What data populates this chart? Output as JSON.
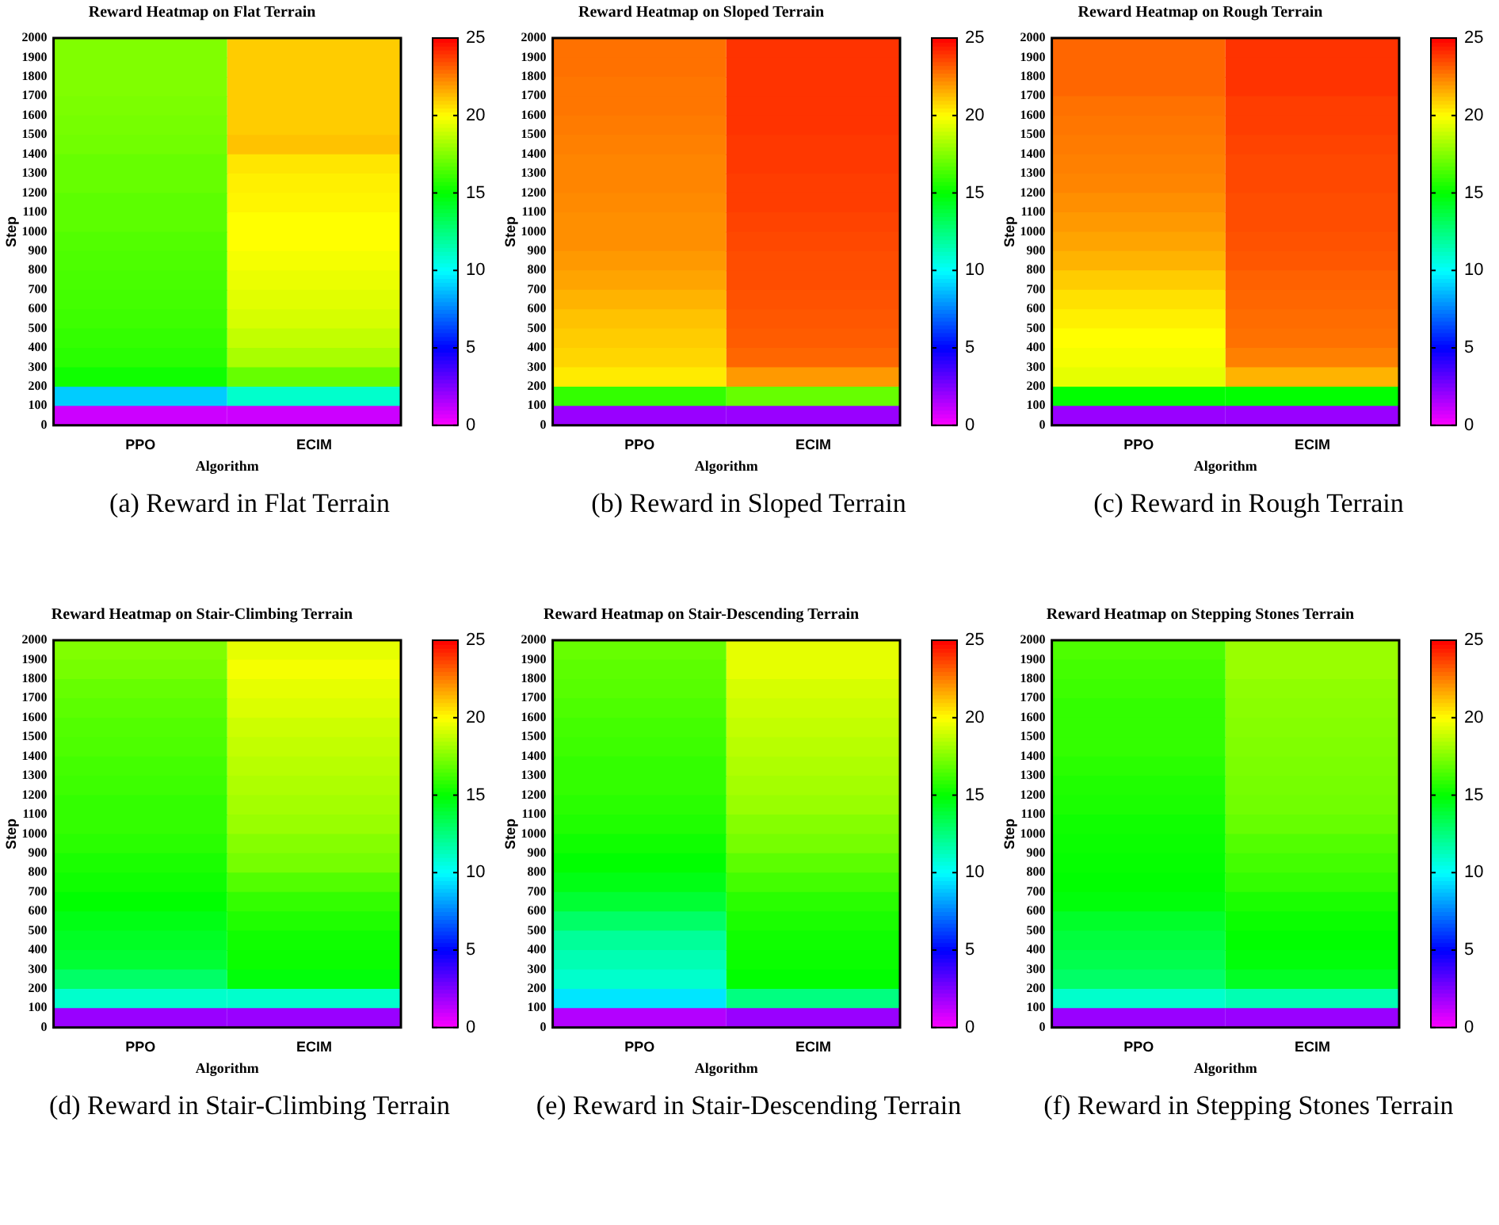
{
  "chart_data": [
    {
      "type": "heatmap",
      "title": "Reward Heatmap on Flat Terrain",
      "xlabel": "Algorithm",
      "ylabel": "Step",
      "categories": [
        "PPO",
        "ECIM"
      ],
      "ylim": [
        0,
        2000
      ],
      "yticks": [
        0,
        100,
        200,
        300,
        400,
        500,
        600,
        700,
        800,
        900,
        1000,
        1100,
        1200,
        1300,
        1400,
        1500,
        1600,
        1700,
        1800,
        1900,
        2000
      ],
      "clim": [
        0,
        25
      ],
      "cticks": [
        0,
        5,
        10,
        15,
        20,
        25
      ],
      "annotations": [
        "(a) Reward in Flat Terrain"
      ],
      "cells": [
        [
          17.5,
          21
        ],
        [
          17.5,
          21
        ],
        [
          17.5,
          21
        ],
        [
          17.4,
          21
        ],
        [
          17.3,
          21
        ],
        [
          17.2,
          21.2
        ],
        [
          17,
          20.5
        ],
        [
          17,
          20.3
        ],
        [
          16.8,
          20.2
        ],
        [
          16.8,
          20
        ],
        [
          16.6,
          20
        ],
        [
          16.5,
          19.8
        ],
        [
          16.4,
          19.6
        ],
        [
          16.3,
          19.4
        ],
        [
          16.2,
          19.2
        ],
        [
          16,
          18.8
        ],
        [
          15.8,
          18.3
        ],
        [
          15.3,
          17
        ],
        [
          9,
          11
        ],
        [
          1,
          1
        ]
      ]
    },
    {
      "type": "heatmap",
      "title": "Reward Heatmap on Sloped Terrain",
      "xlabel": "Algorithm",
      "ylabel": "Step",
      "categories": [
        "PPO",
        "ECIM"
      ],
      "ylim": [
        0,
        2000
      ],
      "yticks": [
        0,
        100,
        200,
        300,
        400,
        500,
        600,
        700,
        800,
        900,
        1000,
        1100,
        1200,
        1300,
        1400,
        1500,
        1600,
        1700,
        1800,
        1900,
        2000
      ],
      "clim": [
        0,
        25
      ],
      "cticks": [
        0,
        5,
        10,
        15,
        20,
        25
      ],
      "annotations": [
        "(b) Reward in Sloped Terrain"
      ],
      "cells": [
        [
          22.8,
          24
        ],
        [
          22.8,
          24
        ],
        [
          22.7,
          24
        ],
        [
          22.7,
          24
        ],
        [
          22.6,
          24
        ],
        [
          22.5,
          23.9
        ],
        [
          22.4,
          23.9
        ],
        [
          22.4,
          23.8
        ],
        [
          22.3,
          23.8
        ],
        [
          22.2,
          23.7
        ],
        [
          22.2,
          23.6
        ],
        [
          22,
          23.5
        ],
        [
          21.8,
          23.5
        ],
        [
          21.5,
          23.4
        ],
        [
          21.2,
          23.3
        ],
        [
          21,
          23.2
        ],
        [
          20.8,
          23
        ],
        [
          20.4,
          22
        ],
        [
          16,
          17
        ],
        [
          2,
          2
        ]
      ]
    },
    {
      "type": "heatmap",
      "title": "Reward Heatmap on Rough Terrain",
      "xlabel": "Algorithm",
      "ylabel": "Step",
      "categories": [
        "PPO",
        "ECIM"
      ],
      "ylim": [
        0,
        2000
      ],
      "yticks": [
        0,
        100,
        200,
        300,
        400,
        500,
        600,
        700,
        800,
        900,
        1000,
        1100,
        1200,
        1300,
        1400,
        1500,
        1600,
        1700,
        1800,
        1900,
        2000
      ],
      "clim": [
        0,
        25
      ],
      "cticks": [
        0,
        5,
        10,
        15,
        20,
        25
      ],
      "annotations": [
        "(c) Reward in Rough Terrain"
      ],
      "cells": [
        [
          23,
          24
        ],
        [
          23,
          24
        ],
        [
          23,
          24
        ],
        [
          22.8,
          23.8
        ],
        [
          22.7,
          23.8
        ],
        [
          22.6,
          23.7
        ],
        [
          22.5,
          23.6
        ],
        [
          22.4,
          23.6
        ],
        [
          22.2,
          23.5
        ],
        [
          22,
          23.5
        ],
        [
          21.8,
          23.4
        ],
        [
          21.5,
          23.3
        ],
        [
          21,
          23.1
        ],
        [
          20.6,
          23
        ],
        [
          20.3,
          22.9
        ],
        [
          20,
          22.8
        ],
        [
          19.8,
          22.5
        ],
        [
          19.5,
          21.5
        ],
        [
          15,
          15
        ],
        [
          2,
          2
        ]
      ]
    },
    {
      "type": "heatmap",
      "title": "Reward Heatmap on Stair-Climbing Terrain",
      "xlabel": "Algorithm",
      "ylabel": "Step",
      "categories": [
        "PPO",
        "ECIM"
      ],
      "ylim": [
        0,
        2000
      ],
      "yticks": [
        0,
        100,
        200,
        300,
        400,
        500,
        600,
        700,
        800,
        900,
        1000,
        1100,
        1200,
        1300,
        1400,
        1500,
        1600,
        1700,
        1800,
        1900,
        2000
      ],
      "clim": [
        0,
        25
      ],
      "cticks": [
        0,
        5,
        10,
        15,
        20,
        25
      ],
      "annotations": [
        "(d) Reward in Stair-Climbing Terrain"
      ],
      "cells": [
        [
          17.5,
          19.5
        ],
        [
          17.3,
          19.8
        ],
        [
          17,
          19.5
        ],
        [
          16.8,
          19.3
        ],
        [
          16.6,
          19
        ],
        [
          16.5,
          18.8
        ],
        [
          16.3,
          18.6
        ],
        [
          16.2,
          18.4
        ],
        [
          16,
          18.2
        ],
        [
          16,
          18
        ],
        [
          15.8,
          17.6
        ],
        [
          15.5,
          17.3
        ],
        [
          15.3,
          16.6
        ],
        [
          15,
          16
        ],
        [
          14.6,
          15.6
        ],
        [
          14.3,
          15.3
        ],
        [
          14,
          15.2
        ],
        [
          13,
          14.8
        ],
        [
          11,
          11
        ],
        [
          2,
          2
        ]
      ]
    },
    {
      "type": "heatmap",
      "title": "Reward Heatmap on Stair-Descending Terrain",
      "xlabel": "Algorithm",
      "ylabel": "Step",
      "categories": [
        "PPO",
        "ECIM"
      ],
      "ylim": [
        0,
        2000
      ],
      "yticks": [
        0,
        100,
        200,
        300,
        400,
        500,
        600,
        700,
        800,
        900,
        1000,
        1100,
        1200,
        1300,
        1400,
        1500,
        1600,
        1700,
        1800,
        1900,
        2000
      ],
      "clim": [
        0,
        25
      ],
      "cticks": [
        0,
        5,
        10,
        15,
        20,
        25
      ],
      "annotations": [
        "(e) Reward in Stair-Descending Terrain"
      ],
      "cells": [
        [
          17,
          19.5
        ],
        [
          16.8,
          19.5
        ],
        [
          16.7,
          19.2
        ],
        [
          16.5,
          19
        ],
        [
          16.3,
          18.8
        ],
        [
          16.2,
          18.6
        ],
        [
          16,
          18.4
        ],
        [
          16,
          18.2
        ],
        [
          15.8,
          18
        ],
        [
          15.6,
          17.6
        ],
        [
          15.3,
          17.3
        ],
        [
          15,
          16.8
        ],
        [
          14.6,
          16.3
        ],
        [
          14,
          15.8
        ],
        [
          13,
          15.5
        ],
        [
          12,
          15.3
        ],
        [
          11.5,
          15.2
        ],
        [
          11,
          15
        ],
        [
          9.5,
          12.5
        ],
        [
          1.5,
          2
        ]
      ]
    },
    {
      "type": "heatmap",
      "title": "Reward Heatmap on Stepping Stones Terrain",
      "xlabel": "Algorithm",
      "ylabel": "Step",
      "categories": [
        "PPO",
        "ECIM"
      ],
      "ylim": [
        0,
        2000
      ],
      "yticks": [
        0,
        100,
        200,
        300,
        400,
        500,
        600,
        700,
        800,
        900,
        1000,
        1100,
        1200,
        1300,
        1400,
        1500,
        1600,
        1700,
        1800,
        1900,
        2000
      ],
      "clim": [
        0,
        25
      ],
      "cticks": [
        0,
        5,
        10,
        15,
        20,
        25
      ],
      "annotations": [
        "(f) Reward in Stepping Stones Terrain"
      ],
      "cells": [
        [
          16.5,
          18
        ],
        [
          16.3,
          18
        ],
        [
          16.2,
          17.8
        ],
        [
          16,
          17.7
        ],
        [
          16,
          17.6
        ],
        [
          16,
          17.5
        ],
        [
          15.8,
          17.4
        ],
        [
          15.6,
          17.3
        ],
        [
          15.5,
          17.2
        ],
        [
          15.3,
          17
        ],
        [
          15.2,
          16.6
        ],
        [
          15.1,
          16.3
        ],
        [
          15,
          16
        ],
        [
          14.8,
          15.5
        ],
        [
          14.2,
          15.2
        ],
        [
          13.8,
          15
        ],
        [
          13.5,
          14.8
        ],
        [
          13,
          14.3
        ],
        [
          11,
          11.5
        ],
        [
          2,
          2
        ]
      ]
    }
  ]
}
